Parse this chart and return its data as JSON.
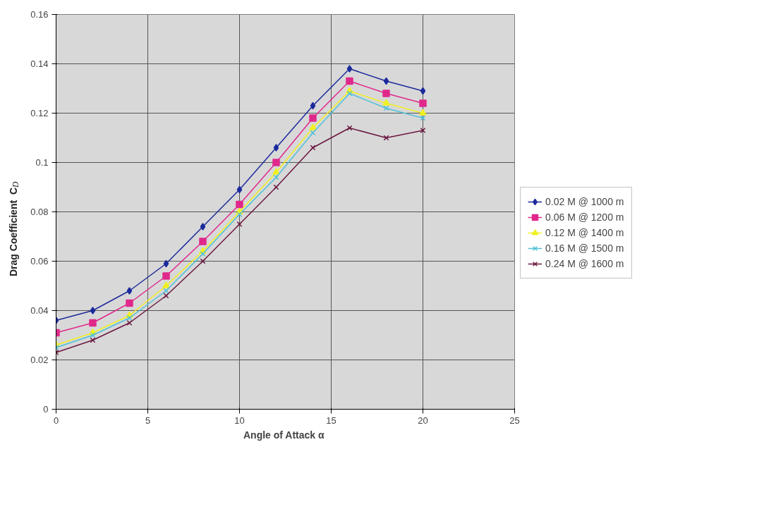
{
  "chart_data": {
    "type": "line",
    "xlabel": "Angle of Attack  α",
    "ylabel": "Drag Coefficient   C$_{D}$",
    "x": [
      0,
      2,
      4,
      6,
      8,
      10,
      12,
      14,
      16,
      18,
      20
    ],
    "xlim": [
      0,
      25
    ],
    "xticks": [
      0,
      5,
      10,
      15,
      20,
      25
    ],
    "ylim": [
      0,
      0.16
    ],
    "yticks": [
      0,
      0.02,
      0.04,
      0.06,
      0.08,
      0.1,
      0.12,
      0.14,
      0.16
    ],
    "grid": true,
    "legend": "right",
    "series": [
      {
        "name": "0.02 M @ 1000 m",
        "color": "#1c2a9c",
        "marker": "diamond",
        "values": [
          0.036,
          0.04,
          0.048,
          0.059,
          0.074,
          0.089,
          0.106,
          0.123,
          0.138,
          0.133,
          0.129
        ]
      },
      {
        "name": "0.06 M @ 1200 m",
        "color": "#e0288c",
        "marker": "square",
        "values": [
          0.031,
          0.035,
          0.043,
          0.054,
          0.068,
          0.083,
          0.1,
          0.118,
          0.133,
          0.128,
          0.124
        ]
      },
      {
        "name": "0.12 M @ 1400 m",
        "color": "#f0f020",
        "marker": "triangle",
        "values": [
          0.026,
          0.031,
          0.038,
          0.05,
          0.064,
          0.08,
          0.096,
          0.114,
          0.129,
          0.124,
          0.12
        ]
      },
      {
        "name": "0.16 M @ 1500 m",
        "color": "#50c0d8",
        "marker": "cross",
        "values": [
          0.025,
          0.03,
          0.037,
          0.048,
          0.063,
          0.079,
          0.094,
          0.112,
          0.128,
          0.122,
          0.118
        ]
      },
      {
        "name": "0.24 M @ 1600 m",
        "color": "#6a1840",
        "marker": "cross",
        "values": [
          0.023,
          0.028,
          0.035,
          0.046,
          0.06,
          0.075,
          0.09,
          0.106,
          0.114,
          0.11,
          0.113
        ]
      }
    ]
  }
}
